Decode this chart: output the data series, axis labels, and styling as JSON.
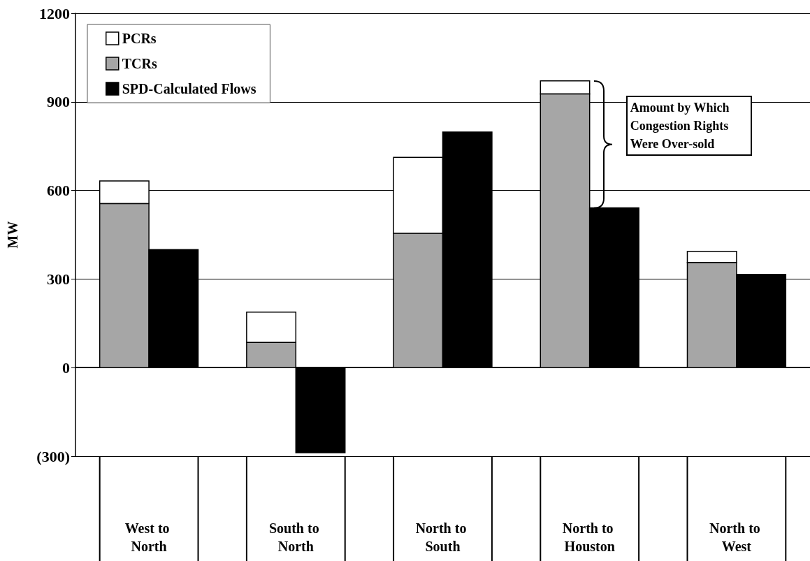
{
  "chart_data": {
    "type": "bar",
    "ylabel": "MW",
    "categories": [
      "West to North",
      "South to North",
      "North to South",
      "North to Houston",
      "North to West"
    ],
    "series": [
      {
        "name": "PCRs",
        "color": "#ffffff",
        "values": [
          77,
          103,
          257,
          44,
          38
        ],
        "base": [
          555,
          85,
          455,
          927,
          356
        ]
      },
      {
        "name": "TCRs",
        "color": "#a6a6a6",
        "values": [
          555,
          85,
          455,
          927,
          356
        ]
      },
      {
        "name": "SPD-Calculated Flows",
        "color": "#000000",
        "values": [
          400,
          -288,
          798,
          541,
          316
        ]
      }
    ],
    "ylim": [
      -300,
      1200
    ],
    "yticks": [
      {
        "value": -300,
        "label": "(300)"
      },
      0,
      300,
      600,
      900,
      1200
    ],
    "grid": "y",
    "legend": "top left",
    "annotations": [
      "Amount by Which Congestion Rights Were Over-sold"
    ]
  }
}
